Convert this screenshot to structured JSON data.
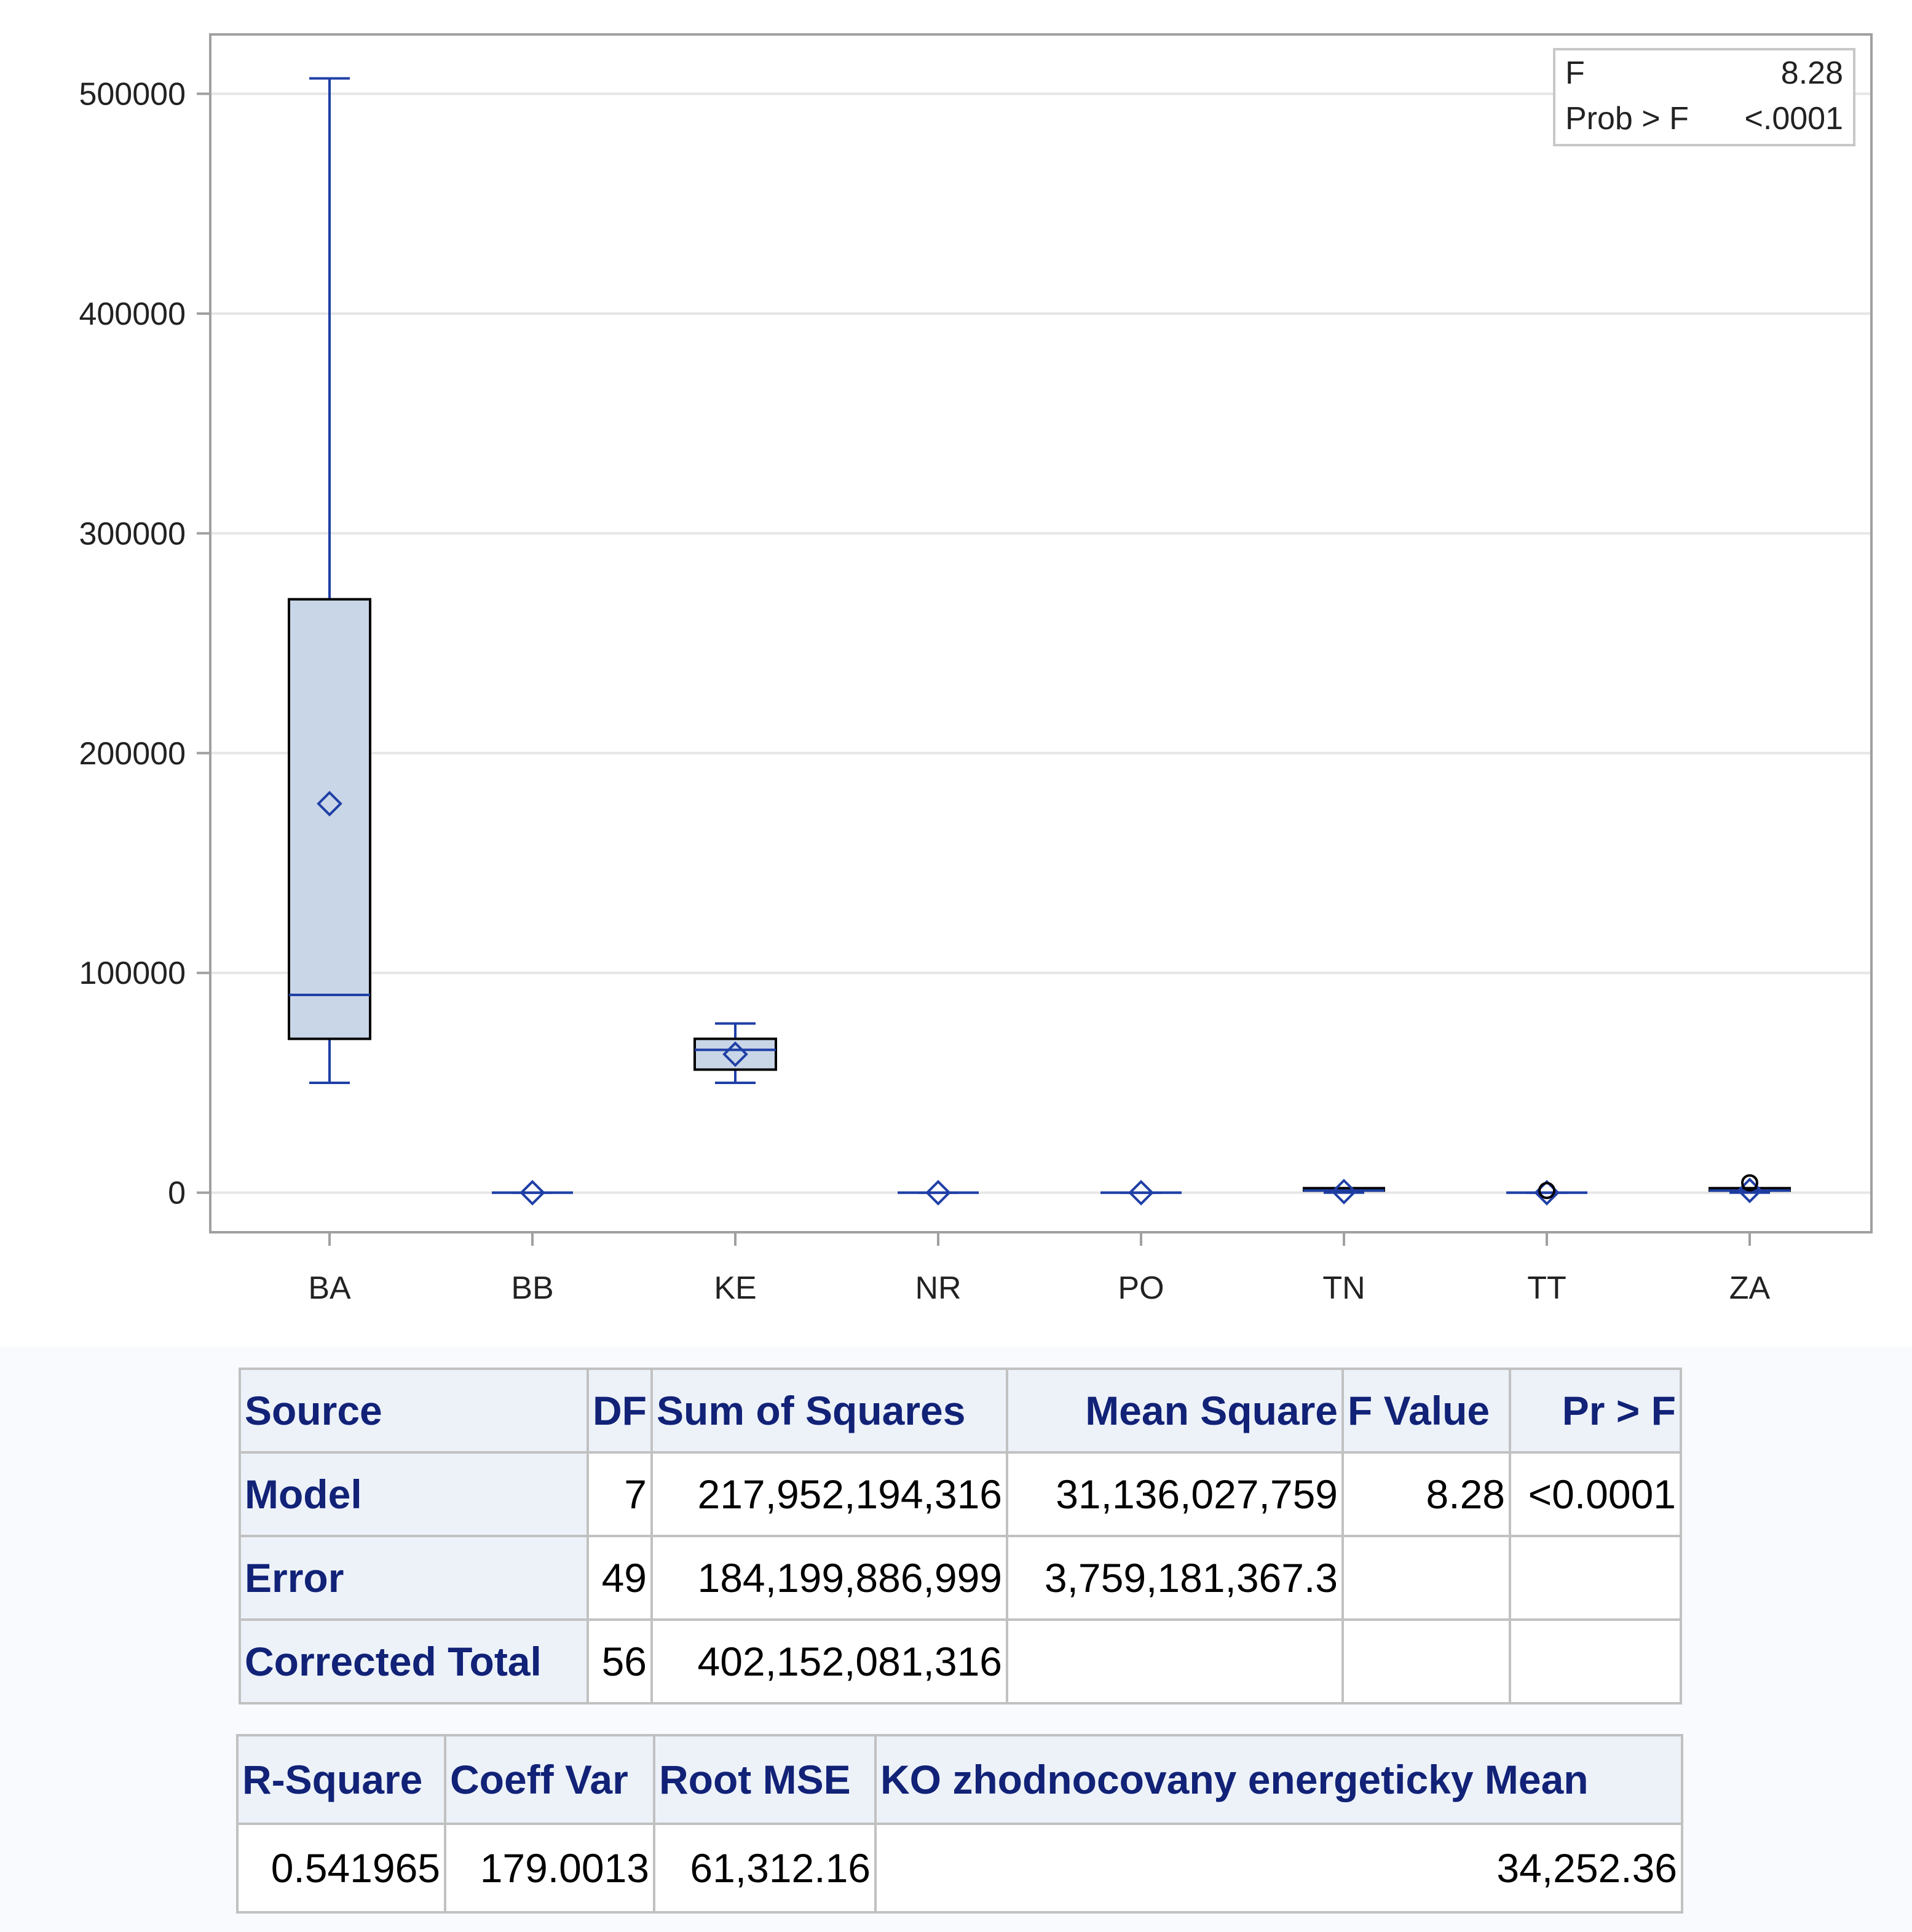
{
  "chart_data": {
    "type": "box",
    "categories": [
      "BA",
      "BB",
      "KE",
      "NR",
      "PO",
      "TN",
      "TT",
      "ZA"
    ],
    "yticks": [
      "0",
      "100000",
      "200000",
      "300000",
      "400000",
      "500000"
    ],
    "ylim": [
      -18000,
      527000
    ],
    "boxes": [
      {
        "category": "BA",
        "min": 50000,
        "q1": 70000,
        "median": 90000,
        "q3": 270000,
        "max": 507000,
        "mean": 177000
      },
      {
        "category": "BB",
        "min": 0,
        "q1": 0,
        "median": 0,
        "q3": 0,
        "max": 0,
        "mean": 0
      },
      {
        "category": "KE",
        "min": 50000,
        "q1": 56000,
        "median": 65000,
        "q3": 70000,
        "max": 77000,
        "mean": 63000
      },
      {
        "category": "NR",
        "min": 0,
        "q1": 0,
        "median": 0,
        "q3": 0,
        "max": 0,
        "mean": 0
      },
      {
        "category": "PO",
        "min": 0,
        "q1": 0,
        "median": 0,
        "q3": 0,
        "max": 0,
        "mean": 0
      },
      {
        "category": "TN",
        "min": 0,
        "q1": 0,
        "median": 1000,
        "q3": 1500,
        "max": 1500,
        "mean": 500
      },
      {
        "category": "TT",
        "min": 0,
        "q1": 0,
        "median": 0,
        "q3": 0,
        "max": 0,
        "mean": 0,
        "outliers": [
          1000
        ]
      },
      {
        "category": "ZA",
        "min": 0,
        "q1": 0,
        "median": 1000,
        "q3": 1500,
        "max": 1500,
        "mean": 1000,
        "outliers": [
          4500
        ]
      }
    ],
    "inset": {
      "rows": [
        {
          "label": "F",
          "value": "8.28"
        },
        {
          "label": "Prob > F",
          "value": "<.0001"
        }
      ]
    },
    "colors": {
      "box_fill": "#c9d6e8",
      "box_edge": "#000000",
      "whisker": "#1f3fa6",
      "grid": "#e6e6e6",
      "frame": "#a0a0a0"
    }
  },
  "anova": {
    "headers": [
      "Source",
      "DF",
      "Sum of Squares",
      "Mean Square",
      "F Value",
      "Pr > F"
    ],
    "rows": [
      [
        "Model",
        "7",
        "217,952,194,316",
        "31,136,027,759",
        "8.28",
        "<0.0001"
      ],
      [
        "Error",
        "49",
        "184,199,886,999",
        "3,759,181,367.3",
        "",
        ""
      ],
      [
        "Corrected Total",
        "56",
        "402,152,081,316",
        "",
        "",
        ""
      ]
    ]
  },
  "fit": {
    "headers": [
      "R-Square",
      "Coeff Var",
      "Root MSE",
      "KO zhodnocovany energeticky Mean"
    ],
    "rows": [
      [
        "0.541965",
        "179.0013",
        "61,312.16",
        "34,252.36"
      ]
    ]
  }
}
